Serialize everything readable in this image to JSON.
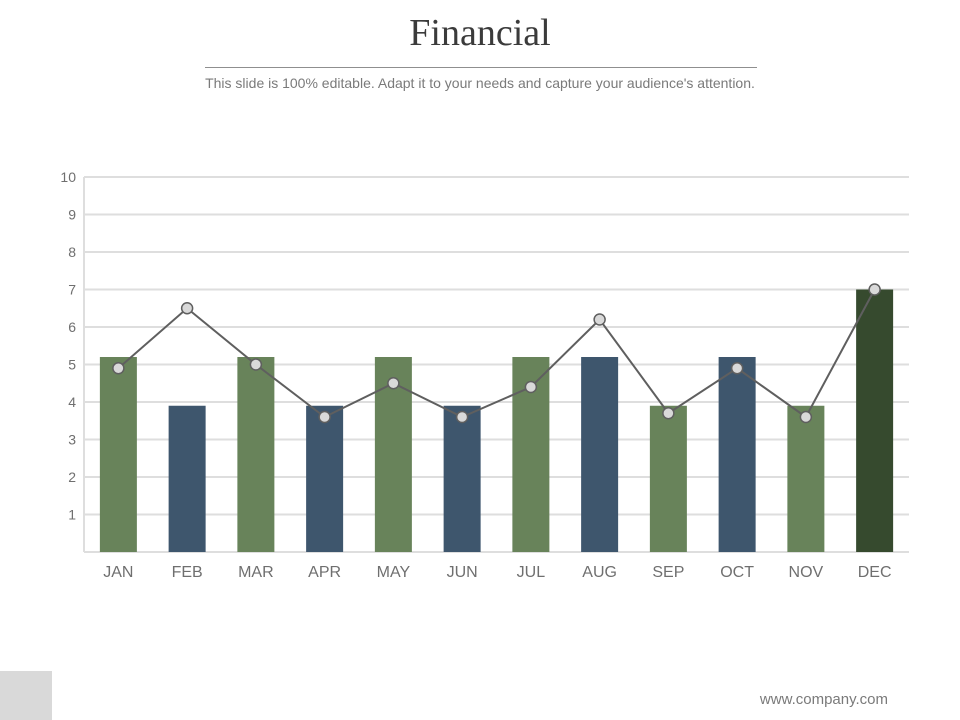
{
  "slide": {
    "title": "Financial",
    "subtitle": "This slide is 100% editable. Adapt it to your needs and capture your audience's attention.",
    "footer": "www.company.com"
  },
  "colors": {
    "green": "#68835a",
    "blue": "#3e566d",
    "dark_green": "#364a2e",
    "line": "#5f5f5f",
    "marker_fill": "#d9d9d9",
    "grid": "#dedede"
  },
  "chart_data": {
    "type": "bar",
    "categories": [
      "JAN",
      "FEB",
      "MAR",
      "APR",
      "MAY",
      "JUN",
      "JUL",
      "AUG",
      "SEP",
      "OCT",
      "NOV",
      "DEC"
    ],
    "series": [
      {
        "type": "bar",
        "values": [
          5.2,
          3.9,
          5.2,
          3.9,
          5.2,
          3.9,
          5.2,
          5.2,
          3.9,
          5.2,
          3.9,
          7.0
        ],
        "colors": [
          "green",
          "blue",
          "green",
          "blue",
          "green",
          "blue",
          "green",
          "blue",
          "green",
          "blue",
          "green",
          "dark_green"
        ]
      },
      {
        "type": "line",
        "values": [
          4.9,
          6.5,
          5.0,
          3.6,
          4.5,
          3.6,
          4.4,
          6.2,
          3.7,
          4.9,
          3.6,
          7.0
        ]
      }
    ],
    "yticks": [
      1,
      2,
      3,
      4,
      5,
      6,
      7,
      8,
      9,
      10
    ],
    "ylim": [
      0,
      10
    ],
    "grid": true,
    "legend": "none",
    "title": "",
    "xlabel": "",
    "ylabel": ""
  }
}
